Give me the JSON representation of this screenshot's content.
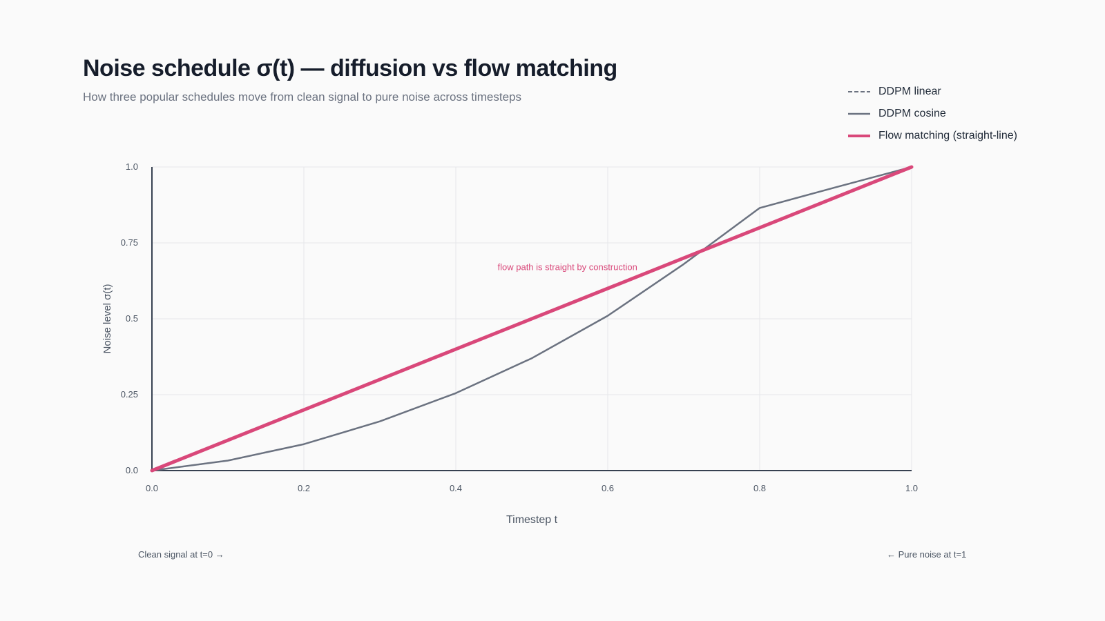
{
  "chart_data": {
    "type": "line",
    "title": "Noise schedule σ(t) — diffusion vs flow matching",
    "subtitle": "How three popular schedules move from clean signal to pure noise across timesteps",
    "xlabel": "Timestep t",
    "ylabel": "Noise level σ(t)",
    "xlim": [
      0,
      1
    ],
    "ylim": [
      0,
      1
    ],
    "x_ticks": [
      "0.0",
      "0.2",
      "0.4",
      "0.6",
      "0.8",
      "1.0"
    ],
    "y_ticks": [
      "0.0",
      "0.25",
      "0.5",
      "0.75",
      "1.0"
    ],
    "grid": true,
    "legend_position": "top-right",
    "series": [
      {
        "name": "DDPM linear",
        "color": "#6b7280",
        "style": "dashed",
        "x": [
          0,
          0.1,
          0.2,
          0.3,
          0.4,
          0.5,
          0.6,
          0.7,
          0.8,
          0.9,
          1.0
        ],
        "y": [
          0,
          0.033,
          0.087,
          0.162,
          0.255,
          0.37,
          0.51,
          0.68,
          0.865,
          0.933,
          1.0
        ]
      },
      {
        "name": "DDPM cosine",
        "color": "#6b7280",
        "style": "solid",
        "x": [
          0,
          0.1,
          0.2,
          0.3,
          0.4,
          0.5,
          0.6,
          0.7,
          0.8,
          0.9,
          1.0
        ],
        "y": [
          0,
          0.033,
          0.087,
          0.162,
          0.255,
          0.37,
          0.51,
          0.68,
          0.865,
          0.933,
          1.0
        ]
      },
      {
        "name": "Flow matching (straight-line)",
        "color": "#d9487a",
        "style": "solid-bold",
        "x": [
          0,
          1
        ],
        "y": [
          0,
          1
        ]
      }
    ],
    "annotation": {
      "text": "flow path is straight by construction",
      "x": 0.455,
      "y": 0.66,
      "color": "#d9487a"
    }
  },
  "footnotes": {
    "left": "Clean signal at t=0 →",
    "right": "← Pure noise at t=1"
  }
}
